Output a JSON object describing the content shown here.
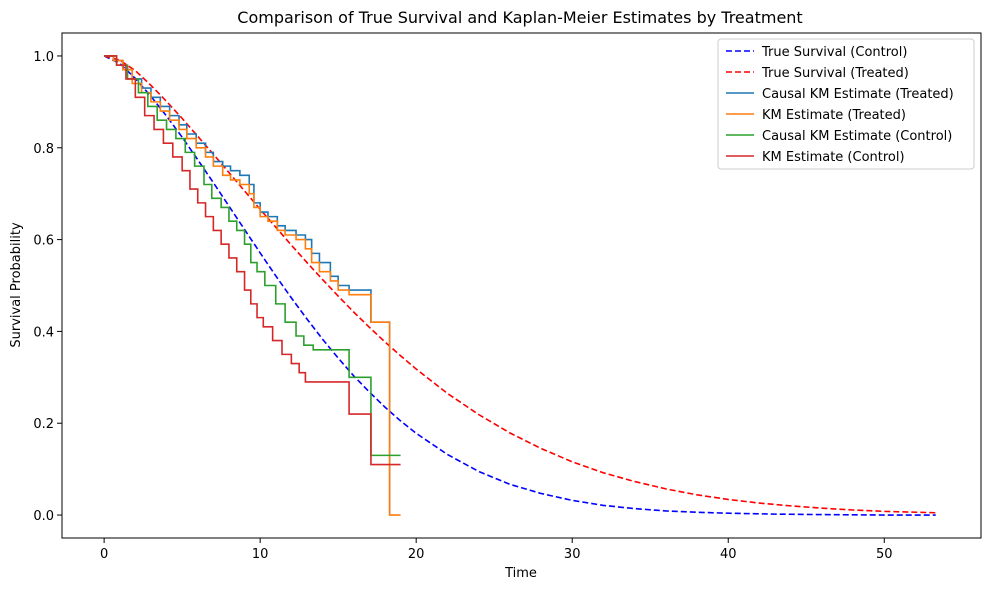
{
  "chart_data": {
    "type": "line",
    "title": "Comparison of True Survival and Kaplan-Meier Estimates by Treatment",
    "xlabel": "Time",
    "ylabel": "Survival Probability",
    "xlim": [
      -2.7,
      56.2
    ],
    "ylim": [
      -0.05,
      1.05
    ],
    "xticks": [
      0,
      10,
      20,
      30,
      40,
      50
    ],
    "yticks": [
      0.0,
      0.2,
      0.4,
      0.6,
      0.8,
      1.0
    ],
    "xtick_labels": [
      "0",
      "10",
      "20",
      "30",
      "40",
      "50"
    ],
    "ytick_labels": [
      "0.0",
      "0.2",
      "0.4",
      "0.6",
      "0.8",
      "1.0"
    ],
    "grid": false,
    "legend_position": "top-right",
    "series": [
      {
        "name": "True Survival (Control)",
        "style": "dashed",
        "color": "#0000ff",
        "x": [
          0,
          1,
          2,
          3,
          4,
          5,
          6,
          7,
          8,
          9,
          10,
          11,
          12,
          13,
          14,
          15,
          16,
          17,
          18,
          19,
          20,
          22,
          24,
          26,
          28,
          30,
          32,
          34,
          36,
          38,
          40,
          43,
          46,
          50,
          53.3
        ],
        "y": [
          1.0,
          0.984,
          0.951,
          0.912,
          0.869,
          0.823,
          0.774,
          0.724,
          0.673,
          0.622,
          0.571,
          0.521,
          0.473,
          0.427,
          0.383,
          0.342,
          0.303,
          0.268,
          0.235,
          0.205,
          0.178,
          0.132,
          0.095,
          0.067,
          0.047,
          0.032,
          0.021,
          0.014,
          0.009,
          0.006,
          0.004,
          0.002,
          0.001,
          0.0,
          0.0
        ]
      },
      {
        "name": "True Survival (Treated)",
        "style": "dashed",
        "color": "#ff0000",
        "x": [
          0,
          1,
          2,
          3,
          4,
          5,
          6,
          7,
          8,
          9,
          10,
          11,
          12,
          13,
          14,
          15,
          16,
          17,
          18,
          19,
          20,
          22,
          24,
          26,
          28,
          30,
          32,
          34,
          36,
          38,
          40,
          42,
          44,
          46,
          48,
          50,
          53.3
        ],
        "y": [
          1.0,
          0.991,
          0.968,
          0.936,
          0.901,
          0.864,
          0.825,
          0.786,
          0.746,
          0.706,
          0.666,
          0.627,
          0.588,
          0.55,
          0.513,
          0.477,
          0.442,
          0.409,
          0.377,
          0.347,
          0.318,
          0.265,
          0.219,
          0.179,
          0.145,
          0.116,
          0.092,
          0.073,
          0.057,
          0.044,
          0.034,
          0.026,
          0.02,
          0.015,
          0.011,
          0.008,
          0.005
        ]
      },
      {
        "name": "Causal KM Estimate (Treated)",
        "style": "step",
        "color": "#1f77b4",
        "x": [
          0,
          0.6,
          1.2,
          1.8,
          2.4,
          3.0,
          3.6,
          4.2,
          4.8,
          5.3,
          5.9,
          6.5,
          7.0,
          7.6,
          8.1,
          8.7,
          9.3,
          9.6,
          10.0,
          10.5,
          11.1,
          11.6,
          12.3,
          12.9,
          13.3,
          13.8,
          14.5,
          15.0,
          15.7,
          17.1,
          18.3
        ],
        "y": [
          1.0,
          0.99,
          0.97,
          0.95,
          0.93,
          0.91,
          0.89,
          0.87,
          0.85,
          0.83,
          0.81,
          0.79,
          0.77,
          0.76,
          0.75,
          0.74,
          0.72,
          0.68,
          0.66,
          0.65,
          0.63,
          0.62,
          0.61,
          0.6,
          0.57,
          0.55,
          0.52,
          0.5,
          0.49,
          0.42,
          0.0
        ]
      },
      {
        "name": "KM Estimate (Treated)",
        "style": "step",
        "color": "#ff7f0e",
        "x": [
          0,
          0.6,
          1.2,
          1.8,
          2.4,
          3.0,
          3.6,
          4.2,
          4.8,
          5.3,
          5.9,
          6.5,
          7.0,
          7.6,
          8.1,
          8.7,
          9.3,
          9.6,
          10.0,
          10.5,
          11.1,
          11.6,
          12.3,
          12.9,
          13.3,
          13.8,
          14.5,
          15.0,
          15.7,
          17.1,
          18.3,
          19.0
        ],
        "y": [
          1.0,
          0.99,
          0.97,
          0.94,
          0.92,
          0.9,
          0.88,
          0.86,
          0.84,
          0.82,
          0.8,
          0.78,
          0.76,
          0.74,
          0.73,
          0.72,
          0.7,
          0.67,
          0.65,
          0.64,
          0.62,
          0.61,
          0.6,
          0.58,
          0.55,
          0.53,
          0.51,
          0.49,
          0.48,
          0.42,
          0.0,
          0.0
        ]
      },
      {
        "name": "Causal KM Estimate (Control)",
        "style": "step",
        "color": "#2ca02c",
        "x": [
          0,
          0.8,
          1.5,
          2.2,
          2.8,
          3.4,
          4.0,
          4.6,
          5.2,
          5.8,
          6.4,
          6.9,
          7.5,
          8.0,
          8.5,
          9.0,
          9.4,
          9.8,
          10.3,
          11.0,
          11.6,
          12.3,
          12.8,
          13.4,
          15.7,
          17.1,
          19.0
        ],
        "y": [
          1.0,
          0.98,
          0.95,
          0.92,
          0.89,
          0.86,
          0.84,
          0.82,
          0.79,
          0.76,
          0.72,
          0.69,
          0.67,
          0.64,
          0.62,
          0.59,
          0.55,
          0.53,
          0.5,
          0.46,
          0.42,
          0.39,
          0.37,
          0.36,
          0.3,
          0.13,
          0.13
        ]
      },
      {
        "name": "KM Estimate (Control)",
        "style": "step",
        "color": "#d62728",
        "x": [
          0,
          0.8,
          1.4,
          2.0,
          2.6,
          3.2,
          3.8,
          4.4,
          5.0,
          5.5,
          6.0,
          6.5,
          7.0,
          7.5,
          8.0,
          8.5,
          9.0,
          9.4,
          9.8,
          10.2,
          10.8,
          11.4,
          12.0,
          12.5,
          12.9,
          13.4,
          15.7,
          17.1,
          19.0
        ],
        "y": [
          1.0,
          0.98,
          0.95,
          0.91,
          0.87,
          0.84,
          0.81,
          0.78,
          0.75,
          0.71,
          0.68,
          0.65,
          0.62,
          0.59,
          0.56,
          0.53,
          0.49,
          0.46,
          0.43,
          0.41,
          0.38,
          0.35,
          0.33,
          0.31,
          0.29,
          0.29,
          0.22,
          0.11,
          0.11
        ]
      }
    ]
  }
}
